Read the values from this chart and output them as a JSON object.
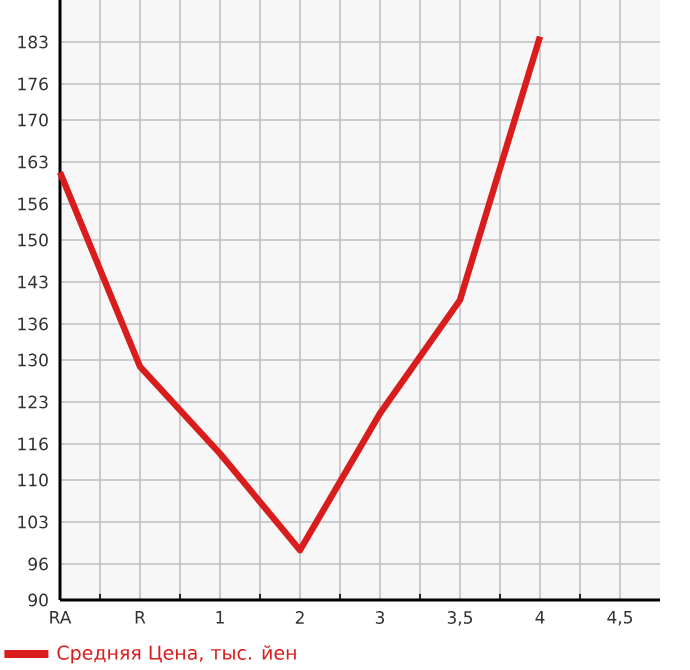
{
  "chart_data": {
    "type": "line",
    "categories": [
      "RA",
      "R",
      "1",
      "2",
      "3",
      "3,5",
      "4",
      "4,5"
    ],
    "series": [
      {
        "name": "Средняя Цена, тыс. йен",
        "color": "#d91c1c",
        "values": [
          161.3,
          128.9,
          114.4,
          98.3,
          121.1,
          140,
          183.9,
          null
        ]
      }
    ],
    "ylim": [
      90,
      190
    ],
    "yticks": [
      90,
      96,
      103,
      110,
      116,
      123,
      130,
      136,
      143,
      150,
      156,
      163,
      170,
      176,
      183
    ],
    "grid": true,
    "legend": "bottom left"
  }
}
